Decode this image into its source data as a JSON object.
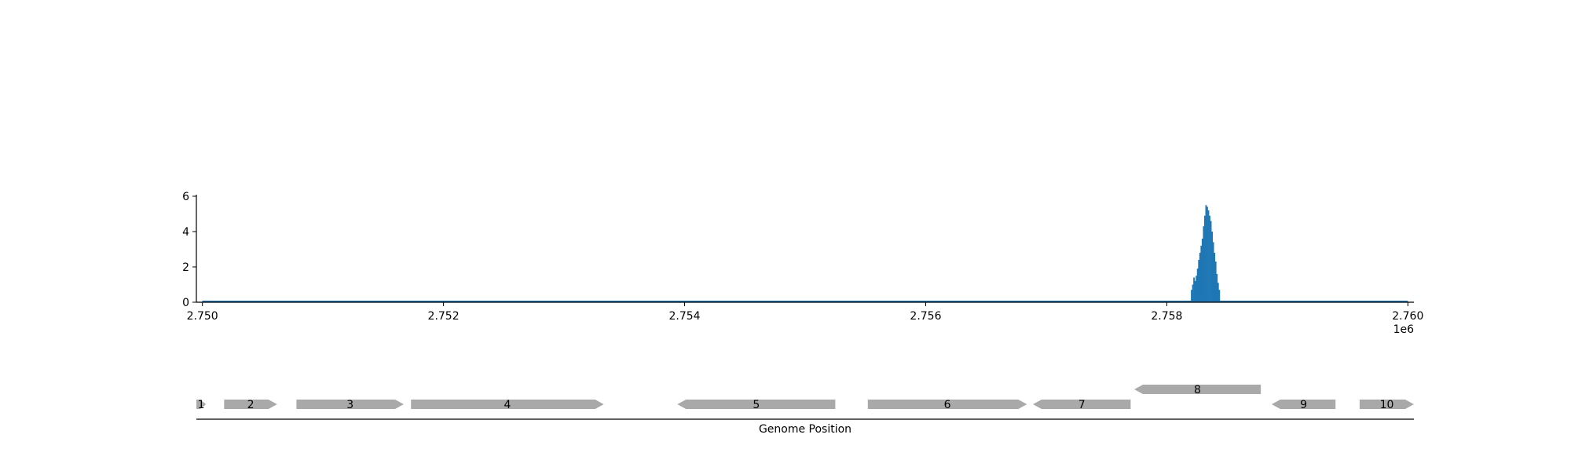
{
  "chart_data": [
    {
      "type": "bar",
      "title": "",
      "xlabel": "",
      "ylabel": "",
      "x_offset_label": "1e6",
      "xlim": [
        2.74995,
        2.76005
      ],
      "ylim": [
        0,
        6
      ],
      "xticks": [
        2.75,
        2.752,
        2.754,
        2.756,
        2.758,
        2.76
      ],
      "xtick_labels": [
        "2.750",
        "2.752",
        "2.754",
        "2.756",
        "2.758",
        "2.760"
      ],
      "yticks": [
        0,
        2,
        4,
        6
      ],
      "ytick_labels": [
        "0",
        "2",
        "4",
        "6"
      ],
      "baseline_range": [
        2.75,
        2.76
      ],
      "grid": false,
      "color": "#1f77b4",
      "x": [
        2.7582,
        2.75821,
        2.75822,
        2.75823,
        2.75824,
        2.75825,
        2.75826,
        2.75827,
        2.75828,
        2.75829,
        2.7583,
        2.75831,
        2.75832,
        2.75833,
        2.75834,
        2.75835,
        2.75836,
        2.75837,
        2.75838,
        2.75839,
        2.7584,
        2.75841,
        2.75842,
        2.75843
      ],
      "values": [
        0.7,
        1.0,
        1.4,
        1.2,
        1.5,
        1.9,
        2.4,
        2.8,
        3.2,
        3.6,
        4.3,
        4.9,
        5.5,
        5.4,
        5.2,
        4.9,
        4.6,
        4.0,
        3.4,
        2.8,
        2.3,
        1.6,
        1.1,
        0.7
      ]
    },
    {
      "type": "gene-track",
      "xlabel": "Genome Position",
      "color": "#a9a9a9",
      "genes": [
        {
          "label": "1",
          "start": 2.74995,
          "end": 2.75003,
          "strand": "+",
          "row": 0
        },
        {
          "label": "2",
          "start": 2.75018,
          "end": 2.75062,
          "strand": "+",
          "row": 0
        },
        {
          "label": "3",
          "start": 2.75078,
          "end": 2.75167,
          "strand": "+",
          "row": 0
        },
        {
          "label": "4",
          "start": 2.75173,
          "end": 2.75333,
          "strand": "+",
          "row": 0
        },
        {
          "label": "5",
          "start": 2.75394,
          "end": 2.75525,
          "strand": "-",
          "row": 0
        },
        {
          "label": "6",
          "start": 2.75552,
          "end": 2.75684,
          "strand": "+",
          "row": 0
        },
        {
          "label": "7",
          "start": 2.75689,
          "end": 2.7577,
          "strand": "-",
          "row": 0
        },
        {
          "label": "8",
          "start": 2.75773,
          "end": 2.75878,
          "strand": "-",
          "row": 1
        },
        {
          "label": "9",
          "start": 2.75887,
          "end": 2.7594,
          "strand": "-",
          "row": 0
        },
        {
          "label": "10",
          "start": 2.7596,
          "end": 2.76005,
          "strand": "+",
          "row": 0
        }
      ]
    }
  ]
}
